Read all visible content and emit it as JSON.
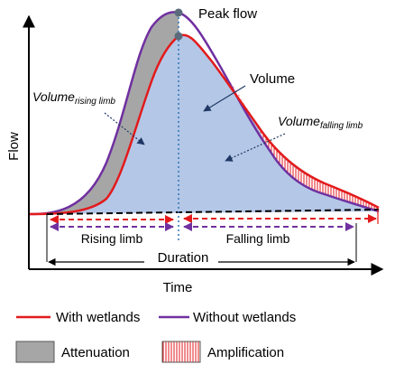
{
  "axes": {
    "x_label": "Time",
    "y_label": "Flow"
  },
  "annotations": {
    "peak_flow": "Peak flow",
    "volume": "Volume",
    "volume_rising_base": "Volume",
    "volume_rising_sub": "rising limb",
    "volume_falling_base": "Volume",
    "volume_falling_sub": "falling limb",
    "rising_limb": "Rising limb",
    "falling_limb": "Falling limb",
    "duration": "Duration"
  },
  "legend": {
    "with_wetlands": "With wetlands",
    "without_wetlands": "Without wetlands",
    "attenuation": "Attenuation",
    "amplification": "Amplification"
  },
  "colors": {
    "with_wetlands": "#e31a1c",
    "without_wetlands": "#7030a0",
    "volume_fill": "#b4c7e7",
    "attenuation": "#a6a6a6",
    "amplification": "#e31a1c",
    "peak_marker": "#5b6b7b",
    "rising_arrow": "#e31a1c",
    "falling_arrow_red": "#e31a1c",
    "limb_arrow_purple": "#7030a0"
  }
}
